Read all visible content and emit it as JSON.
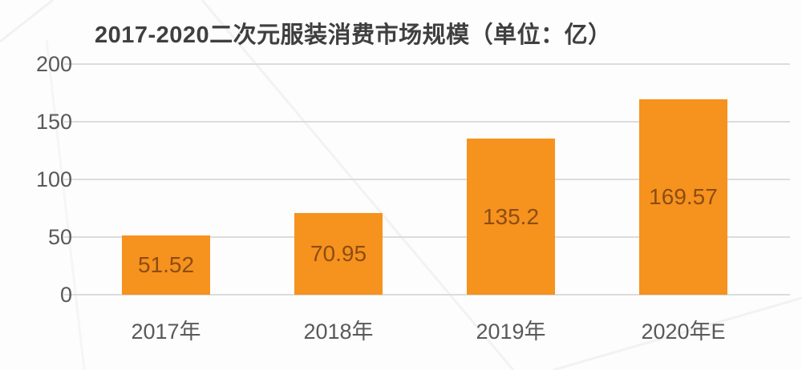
{
  "chart_data": {
    "type": "bar",
    "title": "2017-2020二次元服装消费市场规模（单位：亿）",
    "categories": [
      "2017年",
      "2018年",
      "2019年",
      "2020年E"
    ],
    "values": [
      51.52,
      70.95,
      135.2,
      169.57
    ],
    "value_labels": [
      "51.52",
      "70.95",
      "135.2",
      "169.57"
    ],
    "xlabel": "",
    "ylabel": "",
    "ylim": [
      0,
      200
    ],
    "yticks": [
      0,
      50,
      100,
      150,
      200
    ],
    "grid": "horizontal",
    "legend": "none",
    "colors": {
      "bar_fill": "#F6921E",
      "value_label": "#8C4D12",
      "title_text": "#3F3F3F",
      "axis_text": "#595959",
      "gridline": "#DCDCDC",
      "background": "#FDFDFD"
    }
  }
}
